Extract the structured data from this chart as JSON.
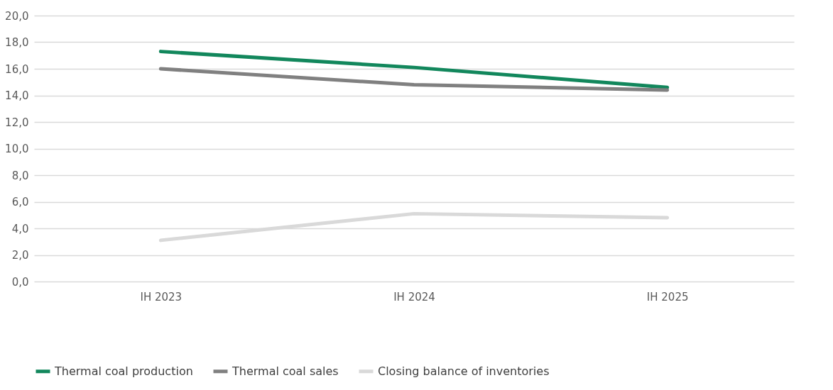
{
  "chart_data": {
    "type": "line",
    "categories": [
      "IH 2023",
      "IH 2024",
      "IH 2025"
    ],
    "series": [
      {
        "name": "Thermal coal production",
        "color": "#12875c",
        "values": [
          17.3,
          16.1,
          14.6
        ]
      },
      {
        "name": "Thermal coal sales",
        "color": "#808080",
        "values": [
          16.0,
          14.8,
          14.4
        ]
      },
      {
        "name": "Closing balance of inventories",
        "color": "#d9d9d9",
        "values": [
          3.1,
          5.1,
          4.8
        ]
      }
    ],
    "ylim": [
      0,
      20
    ],
    "yticks": [
      {
        "value": 0,
        "label": "0,0"
      },
      {
        "value": 2,
        "label": "2,0"
      },
      {
        "value": 4,
        "label": "4,0"
      },
      {
        "value": 6,
        "label": "6,0"
      },
      {
        "value": 8,
        "label": "8,0"
      },
      {
        "value": 10,
        "label": "10,0"
      },
      {
        "value": 12,
        "label": "12,0"
      },
      {
        "value": 14,
        "label": "14,0"
      },
      {
        "value": 16,
        "label": "16,0"
      },
      {
        "value": 18,
        "label": "18,0"
      },
      {
        "value": 20,
        "label": "20,0"
      }
    ],
    "grid": "y",
    "legend": "bottom",
    "marker": "none",
    "line_style": "solid"
  }
}
